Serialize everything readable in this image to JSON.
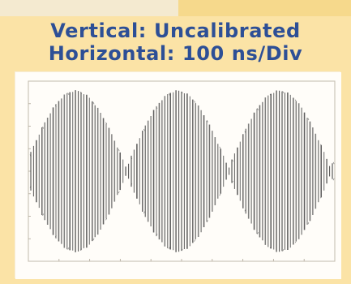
{
  "caption": {
    "vertical": "Vertical: Uncalibrated",
    "horizontal": "Horizontal: 100 ns/Div"
  },
  "colors": {
    "panel_background": "#fbe3a6",
    "caption_text": "#2d4f96",
    "screen_background": "#fffdf9",
    "trace": "#4f4f4f"
  }
}
